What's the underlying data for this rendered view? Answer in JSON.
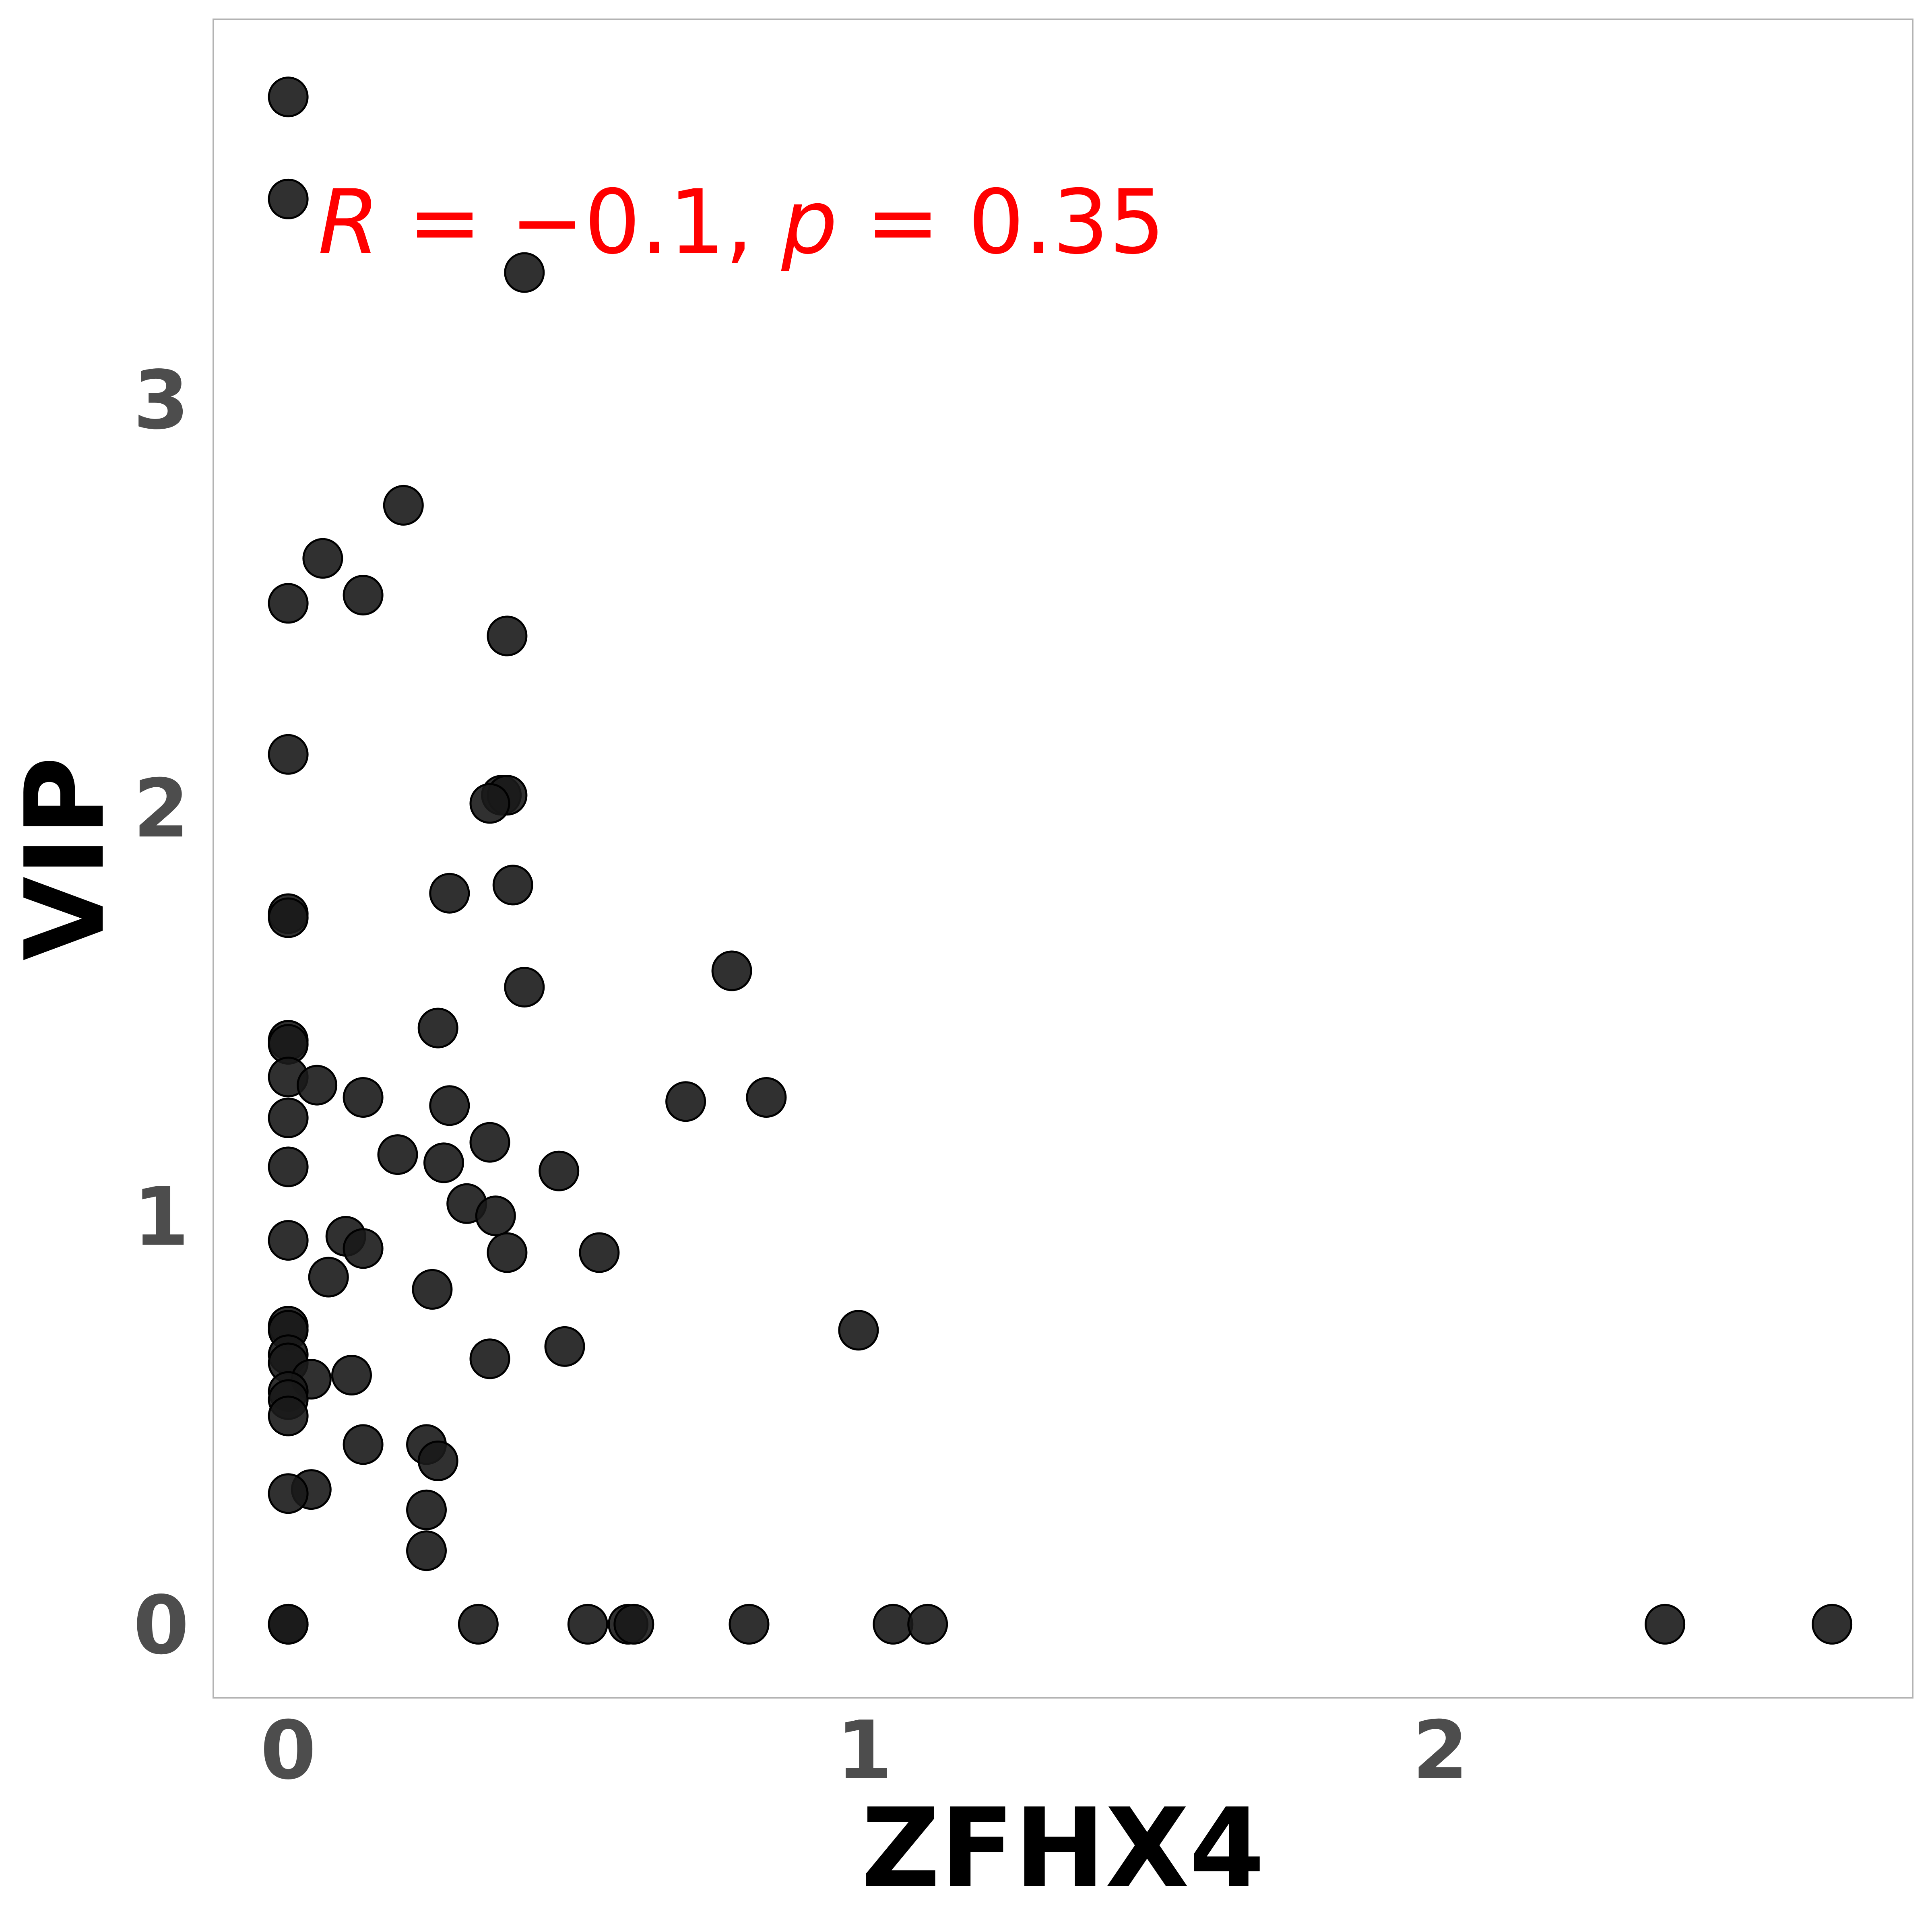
{
  "chart_data": {
    "type": "scatter",
    "xlabel": "ZFHX4",
    "ylabel": "VIP",
    "xlim": [
      -0.13,
      2.82
    ],
    "ylim": [
      -0.18,
      3.93
    ],
    "x_ticks": [
      "0",
      "1",
      "2"
    ],
    "x_tick_values": [
      0,
      1,
      2
    ],
    "y_ticks": [
      "0",
      "1",
      "2",
      "3"
    ],
    "y_tick_values": [
      0,
      1,
      2,
      3
    ],
    "grid": false,
    "annotation": {
      "R_label": "R",
      "R_value": " = −0.1, ",
      "p_label": "p",
      "p_value": " = 0.35"
    },
    "colors": {
      "points": "#1a1a1a",
      "annotation": "#ff0000",
      "frame": "#b3b3b3"
    },
    "points": [
      {
        "x": 0.0,
        "y": 3.74
      },
      {
        "x": 0.0,
        "y": 3.49
      },
      {
        "x": 0.41,
        "y": 3.31
      },
      {
        "x": 0.2,
        "y": 2.74
      },
      {
        "x": 0.06,
        "y": 2.61
      },
      {
        "x": 0.13,
        "y": 2.52
      },
      {
        "x": 0.0,
        "y": 2.5
      },
      {
        "x": 0.38,
        "y": 2.42
      },
      {
        "x": 0.0,
        "y": 2.13
      },
      {
        "x": 0.37,
        "y": 2.03
      },
      {
        "x": 0.38,
        "y": 2.03
      },
      {
        "x": 0.35,
        "y": 2.01
      },
      {
        "x": 0.39,
        "y": 1.81
      },
      {
        "x": 0.28,
        "y": 1.79
      },
      {
        "x": 0.0,
        "y": 1.74
      },
      {
        "x": 0.0,
        "y": 1.73
      },
      {
        "x": 0.77,
        "y": 1.6
      },
      {
        "x": 0.41,
        "y": 1.56
      },
      {
        "x": 0.26,
        "y": 1.46
      },
      {
        "x": 0.0,
        "y": 1.43
      },
      {
        "x": 0.0,
        "y": 1.42
      },
      {
        "x": 0.0,
        "y": 1.34
      },
      {
        "x": 0.05,
        "y": 1.32
      },
      {
        "x": 0.13,
        "y": 1.29
      },
      {
        "x": 0.69,
        "y": 1.28
      },
      {
        "x": 0.83,
        "y": 1.29
      },
      {
        "x": 0.28,
        "y": 1.27
      },
      {
        "x": 0.0,
        "y": 1.24
      },
      {
        "x": 0.35,
        "y": 1.18
      },
      {
        "x": 0.19,
        "y": 1.15
      },
      {
        "x": 0.27,
        "y": 1.13
      },
      {
        "x": 0.47,
        "y": 1.11
      },
      {
        "x": 0.0,
        "y": 1.12
      },
      {
        "x": 0.31,
        "y": 1.03
      },
      {
        "x": 0.36,
        "y": 1.0
      },
      {
        "x": 0.1,
        "y": 0.95
      },
      {
        "x": 0.0,
        "y": 0.94
      },
      {
        "x": 0.13,
        "y": 0.92
      },
      {
        "x": 0.38,
        "y": 0.91
      },
      {
        "x": 0.54,
        "y": 0.91
      },
      {
        "x": 0.07,
        "y": 0.85
      },
      {
        "x": 0.25,
        "y": 0.82
      },
      {
        "x": 0.0,
        "y": 0.73
      },
      {
        "x": 0.0,
        "y": 0.72
      },
      {
        "x": 0.99,
        "y": 0.72
      },
      {
        "x": 0.48,
        "y": 0.68
      },
      {
        "x": 0.0,
        "y": 0.66
      },
      {
        "x": 0.35,
        "y": 0.65
      },
      {
        "x": 0.0,
        "y": 0.64
      },
      {
        "x": 0.11,
        "y": 0.61
      },
      {
        "x": 0.04,
        "y": 0.6
      },
      {
        "x": 0.0,
        "y": 0.57
      },
      {
        "x": 0.0,
        "y": 0.55
      },
      {
        "x": 0.0,
        "y": 0.51
      },
      {
        "x": 0.13,
        "y": 0.44
      },
      {
        "x": 0.24,
        "y": 0.44
      },
      {
        "x": 0.26,
        "y": 0.4
      },
      {
        "x": 0.04,
        "y": 0.33
      },
      {
        "x": 0.0,
        "y": 0.32
      },
      {
        "x": 0.24,
        "y": 0.28
      },
      {
        "x": 0.24,
        "y": 0.18
      },
      {
        "x": 0.0,
        "y": 0.0
      },
      {
        "x": 0.0,
        "y": 0.0
      },
      {
        "x": 0.33,
        "y": 0.0
      },
      {
        "x": 0.52,
        "y": 0.0
      },
      {
        "x": 0.59,
        "y": 0.0
      },
      {
        "x": 0.6,
        "y": 0.0
      },
      {
        "x": 0.8,
        "y": 0.0
      },
      {
        "x": 1.05,
        "y": 0.0
      },
      {
        "x": 1.11,
        "y": 0.0
      },
      {
        "x": 2.39,
        "y": 0.0
      },
      {
        "x": 2.68,
        "y": 0.0
      }
    ]
  }
}
